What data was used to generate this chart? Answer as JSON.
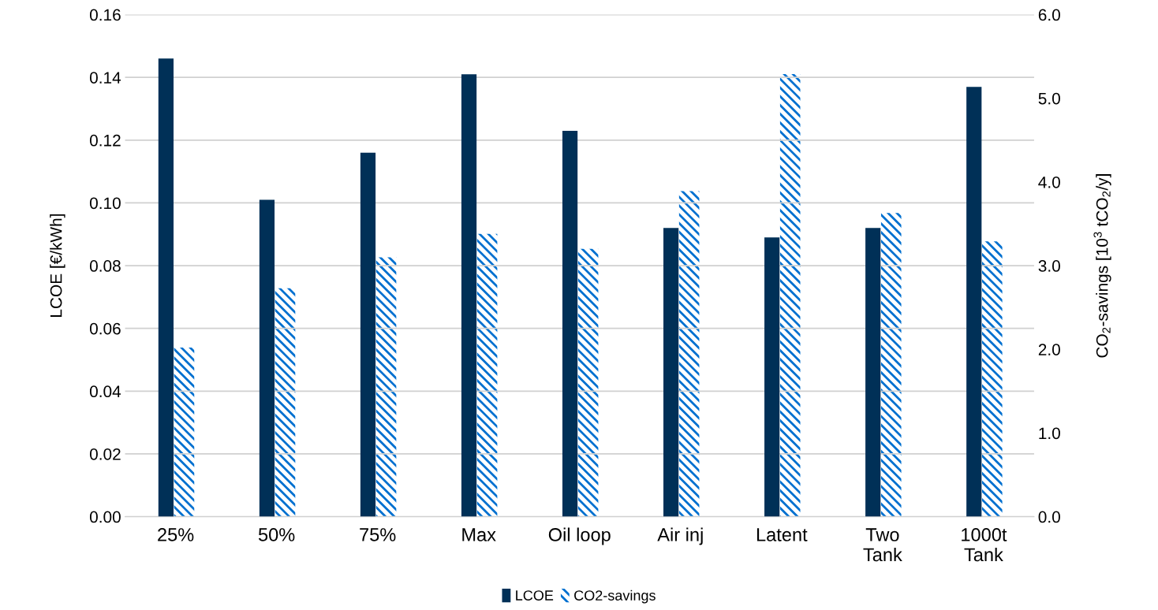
{
  "chart_data": {
    "type": "bar",
    "categories": [
      "25%",
      "50%",
      "75%",
      "Max",
      "Oil loop",
      "Air inj",
      "Latent",
      "Two\nTank",
      "1000t\nTank"
    ],
    "series": [
      {
        "name": "LCOE",
        "color": "#003057",
        "values": [
          0.146,
          0.101,
          0.116,
          0.141,
          0.123,
          0.092,
          0.089,
          0.092,
          0.137
        ]
      },
      {
        "name": "CO2-savings",
        "color": "#0070d0",
        "axis": "y2",
        "values": [
          2.02,
          2.73,
          3.1,
          3.38,
          3.2,
          3.89,
          5.29,
          3.63,
          3.29
        ]
      }
    ],
    "ylabel": "LCOE [€/kWh]",
    "y2label": "CO$_{2}$-savings [10$^{3}$ tCO$_{2}$/y]",
    "ylim": [
      0,
      0.16
    ],
    "yticks": [
      {
        "value": 0,
        "label": "0.00"
      },
      {
        "value": 0.02,
        "label": "0.02"
      },
      {
        "value": 0.04,
        "label": "0.04"
      },
      {
        "value": 0.06,
        "label": "0.06"
      },
      {
        "value": 0.08,
        "label": "0.08"
      },
      {
        "value": 0.1,
        "label": "0.10"
      },
      {
        "value": 0.12,
        "label": "0.12"
      },
      {
        "value": 0.14,
        "label": "0.14"
      },
      {
        "value": 0.16,
        "label": "0.16"
      }
    ],
    "y2lim": [
      0,
      6
    ],
    "y2ticks": [
      {
        "value": 0,
        "label": "0.0"
      },
      {
        "value": 1,
        "label": "1.0"
      },
      {
        "value": 2,
        "label": "2.0"
      },
      {
        "value": 3,
        "label": "3.0"
      },
      {
        "value": 4,
        "label": "4.0"
      },
      {
        "value": 5,
        "label": "5.0"
      },
      {
        "value": 6,
        "label": "6.0"
      }
    ],
    "grid": "y",
    "legend": "bottom"
  }
}
